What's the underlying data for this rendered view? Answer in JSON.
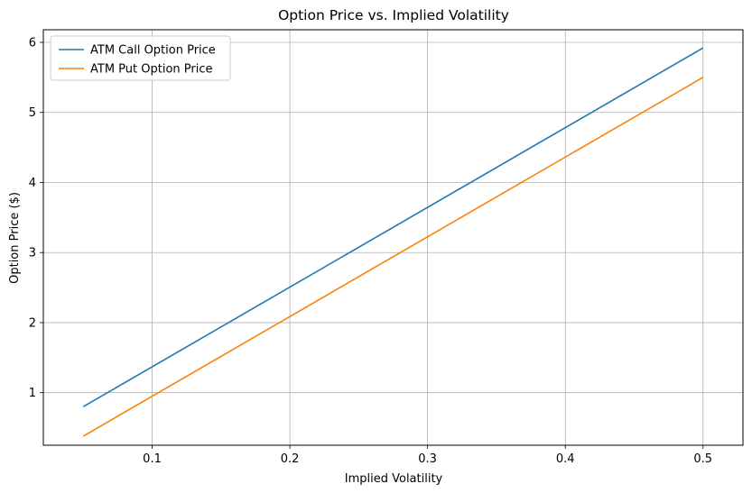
{
  "chart_data": {
    "type": "line",
    "title": "Option Price vs. Implied Volatility",
    "xlabel": "Implied Volatility",
    "ylabel": "Option Price ($)",
    "xlim": [
      0.021,
      0.529
    ],
    "ylim": [
      0.25,
      6.18
    ],
    "xticks": [
      0.1,
      0.2,
      0.3,
      0.4,
      0.5
    ],
    "xtick_labels": [
      "0.1",
      "0.2",
      "0.3",
      "0.4",
      "0.5"
    ],
    "yticks": [
      1,
      2,
      3,
      4,
      5,
      6
    ],
    "ytick_labels": [
      "1",
      "2",
      "3",
      "4",
      "5",
      "6"
    ],
    "grid": true,
    "legend_position": "top-left",
    "series": [
      {
        "name": "ATM Call Option Price",
        "color": "#1f77b4",
        "x": [
          0.05,
          0.5
        ],
        "y": [
          0.8,
          5.92
        ]
      },
      {
        "name": "ATM Put Option Price",
        "color": "#ff7f0e",
        "x": [
          0.05,
          0.5
        ],
        "y": [
          0.38,
          5.5
        ]
      }
    ]
  }
}
